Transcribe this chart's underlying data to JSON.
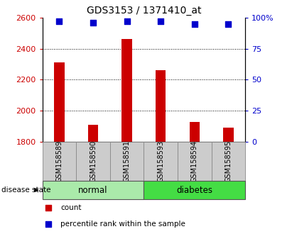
{
  "title": "GDS3153 / 1371410_at",
  "samples": [
    "GSM158589",
    "GSM158590",
    "GSM158591",
    "GSM158593",
    "GSM158594",
    "GSM158595"
  ],
  "bar_values": [
    2310,
    1910,
    2460,
    2260,
    1930,
    1890
  ],
  "percentile_values": [
    97,
    96,
    97,
    97,
    95,
    95
  ],
  "bar_color": "#cc0000",
  "percentile_color": "#0000cc",
  "ylim_left": [
    1800,
    2600
  ],
  "ylim_right": [
    0,
    100
  ],
  "yticks_left": [
    1800,
    2000,
    2200,
    2400,
    2600
  ],
  "yticks_right": [
    0,
    25,
    50,
    75,
    100
  ],
  "ytick_right_labels": [
    "0",
    "25",
    "50",
    "75",
    "100%"
  ],
  "groups": [
    {
      "label": "normal",
      "indices": [
        0,
        1,
        2
      ],
      "color": "#aaeaaa"
    },
    {
      "label": "diabetes",
      "indices": [
        3,
        4,
        5
      ],
      "color": "#44dd44"
    }
  ],
  "sample_box_color": "#cccccc",
  "legend_items": [
    {
      "label": "count",
      "color": "#cc0000"
    },
    {
      "label": "percentile rank within the sample",
      "color": "#0000cc"
    }
  ],
  "title_fontsize": 10,
  "tick_fontsize": 8,
  "bar_width": 0.3
}
